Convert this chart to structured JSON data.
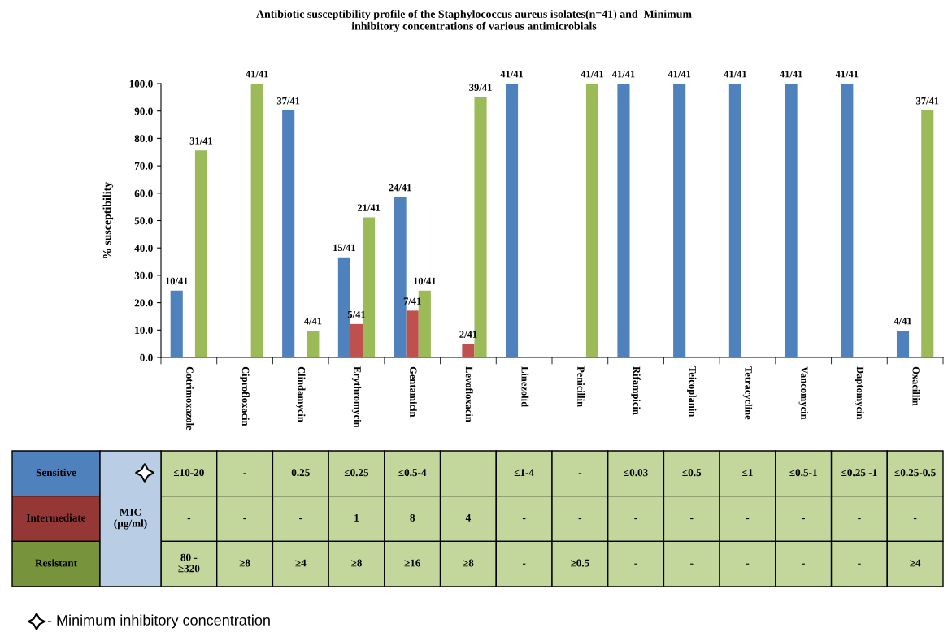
{
  "chart_data": [
    {
      "type": "bar",
      "title": "Antibiotic susceptibility profile of the Staphylococcus aureus isolates(n=41) and  Minimum\ninhibitory concentrations of various antimicrobials",
      "ylabel": "% susceptibility",
      "categories": [
        "Cotrimoxazole",
        "Ciprofloxacin",
        "Clindamycin",
        "Erythromycin",
        "Gentamicin",
        "Levofloxacin",
        "Linezolid",
        "Penicillin",
        "Rifampicin",
        "Teicoplanin",
        "Tetracycline",
        "Vancomycin",
        "Daptomycin",
        "Oxacillin"
      ],
      "series": [
        {
          "color": "#4f81bd",
          "values": [
            24.4,
            null,
            90.2,
            36.6,
            58.5,
            null,
            100,
            null,
            100,
            100,
            100,
            100,
            100,
            9.8
          ],
          "value_labels": [
            "10/41",
            null,
            "37/41",
            "15/41",
            "24/41",
            null,
            "41/41",
            null,
            "41/41",
            "41/41",
            "41/41",
            "41/41",
            "41/41",
            "4/41"
          ]
        },
        {
          "color": "#c0504d",
          "values": [
            null,
            null,
            null,
            12.2,
            17.1,
            4.9,
            null,
            null,
            null,
            null,
            null,
            null,
            null,
            null
          ],
          "value_labels": [
            null,
            null,
            null,
            "5/41",
            "7/41",
            "2/41",
            null,
            null,
            null,
            null,
            null,
            null,
            null,
            null
          ]
        },
        {
          "color": "#9bbb59",
          "values": [
            75.6,
            100,
            9.8,
            51.2,
            24.4,
            95.1,
            null,
            100,
            null,
            null,
            null,
            null,
            null,
            90.2
          ],
          "value_labels": [
            "31/41",
            "41/41",
            "4/41",
            "21/41",
            "10/41",
            "39/41",
            null,
            "41/41",
            null,
            null,
            null,
            null,
            null,
            "37/41"
          ]
        }
      ],
      "ylim": [
        0,
        100
      ],
      "yticks": [
        {
          "value": 0,
          "label": "0.0"
        },
        {
          "value": 10,
          "label": "10.0"
        },
        {
          "value": 20,
          "label": "20.0"
        },
        {
          "value": 30,
          "label": "30.0"
        },
        {
          "value": 40,
          "label": "40.0"
        },
        {
          "value": 50,
          "label": "50.0"
        },
        {
          "value": 60,
          "label": "60.0"
        },
        {
          "value": 70,
          "label": "70.0"
        },
        {
          "value": 80,
          "label": "80.0"
        },
        {
          "value": 90,
          "label": "90.0"
        },
        {
          "value": 100,
          "label": "100.0"
        }
      ]
    },
    {
      "type": "other",
      "y_categories": [
        "Sensitive",
        "Intermediate",
        "Resistant"
      ],
      "colors": [
        "#4f81bd",
        "#953735",
        "#77933c"
      ],
      "cell_labels": [
        [
          "≤10-20",
          "-",
          "0.25",
          "≤0.25",
          "≤0.5-4",
          null,
          "≤1-4",
          "-",
          "≤0.03",
          "≤0.5",
          "≤1",
          "≤0.5-1",
          "≤0.25 -1",
          "≤0.25-0.5"
        ],
        [
          "-",
          "-",
          "-",
          "1",
          "8",
          "4",
          "-",
          "-",
          "-",
          "-",
          "-",
          "-",
          "-",
          "-"
        ],
        [
          "80 -\n≥320",
          "≥8",
          "≥4",
          "≥8",
          "≥16",
          "≥8",
          "-",
          "≥0.5",
          "-",
          "-",
          "-",
          "-",
          "-",
          "≥4"
        ]
      ],
      "annotations": [
        "MIC\n(µg/ml)",
        "- Minimum inhibitory concentration"
      ]
    }
  ]
}
